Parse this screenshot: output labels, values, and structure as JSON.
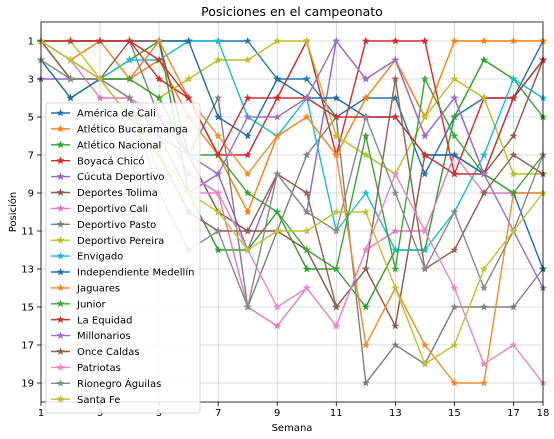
{
  "chart_data": {
    "type": "line",
    "title": "Posiciones en el campeonato",
    "xlabel": "Semana",
    "ylabel": "Posición",
    "xlim": [
      1,
      18
    ],
    "ylim": [
      20,
      0
    ],
    "y_inverted": true,
    "grid": true,
    "legend_position": "left",
    "x_ticks": [
      1,
      3,
      5,
      7,
      9,
      11,
      13,
      15,
      17,
      18
    ],
    "y_ticks": [
      1,
      3,
      5,
      7,
      9,
      11,
      13,
      15,
      17,
      19
    ],
    "x": [
      1,
      2,
      3,
      4,
      5,
      6,
      7,
      8,
      9,
      10,
      11,
      12,
      13,
      14,
      15,
      16,
      17,
      18
    ],
    "series": [
      {
        "name": "América de Cali",
        "color": "#1f77b4",
        "values": [
          1,
          1,
          1,
          1,
          1,
          1,
          1,
          1,
          3,
          3,
          5,
          4,
          4,
          8,
          5,
          4,
          4,
          1
        ]
      },
      {
        "name": "Atlético Bucaramanga",
        "color": "#ff7f0e",
        "values": [
          1,
          2,
          1,
          3,
          2,
          5,
          7,
          10,
          6,
          5,
          7,
          4,
          2,
          5,
          1,
          1,
          1,
          1
        ]
      },
      {
        "name": "Atlético Nacional",
        "color": "#2ca02c",
        "values": [
          2,
          4,
          3,
          2,
          1,
          9,
          12,
          12,
          10,
          13,
          13,
          15,
          12,
          12,
          5,
          2,
          3,
          5
        ]
      },
      {
        "name": "Boyacá Chicó",
        "color": "#d62728",
        "values": [
          1,
          1,
          1,
          1,
          3,
          4,
          7,
          7,
          4,
          1,
          7,
          1,
          1,
          1,
          8,
          4,
          4,
          2
        ]
      },
      {
        "name": "Cúcuta Deportivo",
        "color": "#9467bd",
        "values": [
          3,
          3,
          3,
          4,
          6,
          9,
          8,
          12,
          8,
          10,
          1,
          3,
          2,
          6,
          4,
          8,
          4,
          2
        ]
      },
      {
        "name": "Deportes Tolima",
        "color": "#8c564b",
        "values": [
          1,
          3,
          3,
          1,
          1,
          7,
          10,
          11,
          11,
          12,
          15,
          13,
          16,
          7,
          7,
          8,
          6,
          2
        ]
      },
      {
        "name": "Deportivo Cali",
        "color": "#e377c2",
        "values": [
          1,
          2,
          4,
          4,
          5,
          8,
          9,
          15,
          16,
          14,
          16,
          12,
          11,
          11,
          7,
          9,
          9,
          9
        ]
      },
      {
        "name": "Deportivo Pasto",
        "color": "#7f7f7f",
        "values": [
          1,
          1,
          1,
          1,
          5,
          7,
          4,
          15,
          11,
          7,
          5,
          19,
          17,
          18,
          15,
          15,
          15,
          13
        ]
      },
      {
        "name": "Deportivo Pereira",
        "color": "#bcbd22",
        "values": [
          1,
          1,
          3,
          3,
          4,
          3,
          2,
          2,
          1,
          1,
          6,
          7,
          8,
          5,
          3,
          4,
          8,
          8
        ]
      },
      {
        "name": "Envigado",
        "color": "#17becf",
        "values": [
          1,
          3,
          3,
          2,
          2,
          1,
          1,
          5,
          6,
          4,
          11,
          9,
          12,
          12,
          10,
          7,
          3,
          4
        ]
      },
      {
        "name": "Independiente Medellín",
        "color": "#1f6ea8",
        "values": [
          2,
          4,
          3,
          3,
          1,
          1,
          5,
          6,
          3,
          4,
          4,
          5,
          5,
          7,
          7,
          8,
          9,
          13
        ]
      },
      {
        "name": "Jaguares",
        "color": "#f28b2c",
        "values": [
          1,
          3,
          3,
          3,
          1,
          4,
          6,
          8,
          6,
          5,
          7,
          17,
          14,
          17,
          19,
          19,
          9,
          9
        ]
      },
      {
        "name": "Junior",
        "color": "#3aa43a",
        "values": [
          1,
          3,
          3,
          3,
          4,
          7,
          7,
          9,
          10,
          12,
          13,
          6,
          13,
          3,
          6,
          8,
          9,
          7
        ]
      },
      {
        "name": "La Equidad",
        "color": "#c73232",
        "values": [
          1,
          1,
          1,
          1,
          2,
          4,
          7,
          4,
          4,
          4,
          5,
          5,
          5,
          7,
          8,
          8,
          4,
          2
        ]
      },
      {
        "name": "Millonarios",
        "color": "#9b72c2",
        "values": [
          1,
          2,
          3,
          4,
          6,
          7,
          8,
          5,
          5,
          4,
          1,
          3,
          2,
          6,
          4,
          8,
          11,
          14
        ]
      },
      {
        "name": "Once Caldas",
        "color": "#93604f",
        "values": [
          1,
          3,
          3,
          5,
          7,
          10,
          11,
          11,
          8,
          9,
          15,
          13,
          3,
          13,
          12,
          9,
          7,
          8
        ]
      },
      {
        "name": "Patriotas",
        "color": "#ea86c9",
        "values": [
          1,
          2,
          3,
          4,
          8,
          9,
          9,
          12,
          15,
          14,
          16,
          12,
          8,
          11,
          14,
          18,
          17,
          19
        ]
      },
      {
        "name": "Rionegro Águilas",
        "color": "#8a8a8a",
        "values": [
          2,
          3,
          3,
          4,
          9,
          12,
          11,
          15,
          8,
          10,
          11,
          5,
          9,
          13,
          10,
          14,
          11,
          7
        ]
      },
      {
        "name": "Santa Fe",
        "color": "#c0c12e",
        "values": [
          1,
          2,
          3,
          5,
          7,
          9,
          10,
          12,
          11,
          11,
          10,
          10,
          14,
          18,
          17,
          13,
          11,
          9
        ]
      }
    ]
  }
}
